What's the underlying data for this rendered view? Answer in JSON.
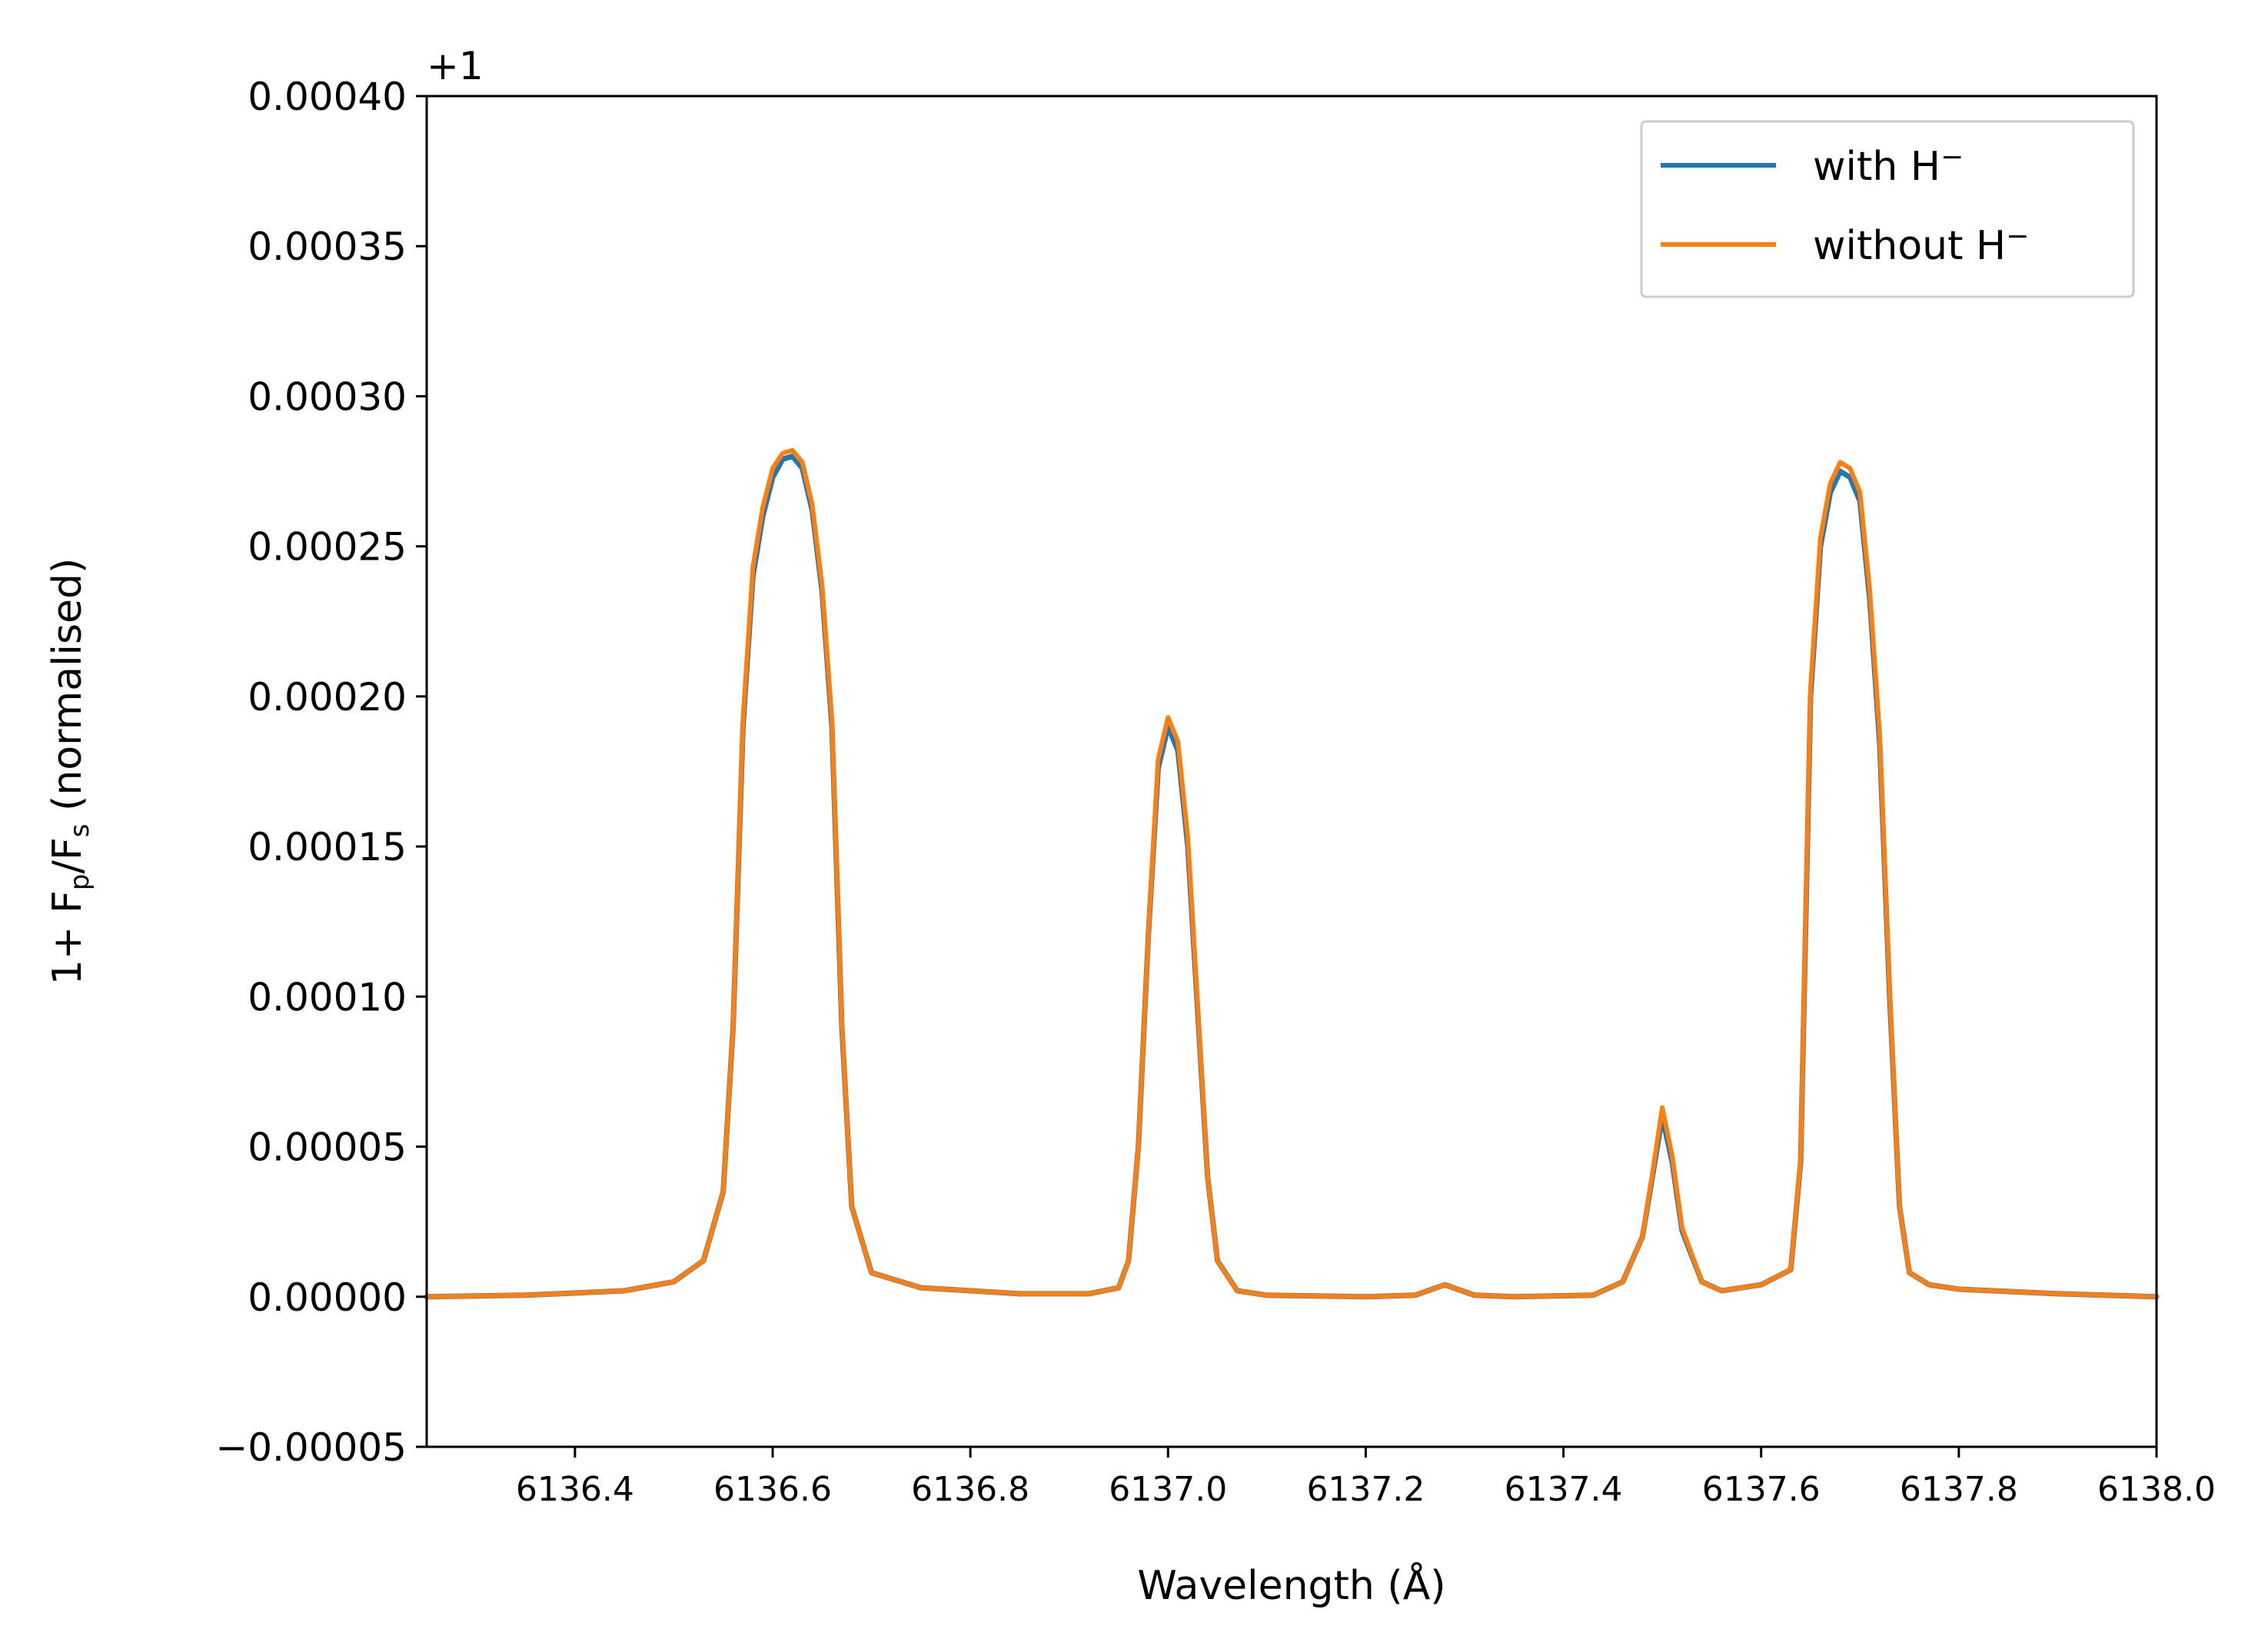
{
  "chart_data": {
    "type": "line",
    "xlabel": "Wavelength (Å)",
    "ylabel": "1+ F_p/F_s (normalised)",
    "ylabel_parts": {
      "prefix": "1+ F",
      "sub1": "p",
      "mid": "/F",
      "sub2": "s",
      "suffix": " (normalised)"
    },
    "y_offset_label": "+1",
    "xlim": [
      6136.25,
      6138.0
    ],
    "ylim": [
      -5e-05,
      0.0004
    ],
    "x_ticks": [
      6136.4,
      6136.6,
      6136.8,
      6137.0,
      6137.2,
      6137.4,
      6137.6,
      6137.8,
      6138.0
    ],
    "x_tick_labels": [
      "6136.4",
      "6136.6",
      "6136.8",
      "6137.0",
      "6137.2",
      "6137.4",
      "6137.6",
      "6137.8",
      "6138.0"
    ],
    "y_ticks": [
      -5e-05,
      0,
      5e-05,
      0.0001,
      0.00015,
      0.0002,
      0.00025,
      0.0003,
      0.00035,
      0.0004
    ],
    "y_tick_labels": [
      "−0.00005",
      "0.00000",
      "0.00005",
      "0.00010",
      "0.00015",
      "0.00020",
      "0.00025",
      "0.00030",
      "0.00035",
      "0.00040"
    ],
    "grid": false,
    "legend_position": "top-right",
    "series": [
      {
        "name": "with H⁻",
        "legend_base": "with H",
        "legend_sup": "−",
        "color": "#1f77b4",
        "x": [
          6136.25,
          6136.35,
          6136.45,
          6136.5,
          6136.53,
          6136.55,
          6136.56,
          6136.57,
          6136.58,
          6136.59,
          6136.6,
          6136.61,
          6136.62,
          6136.63,
          6136.64,
          6136.65,
          6136.66,
          6136.67,
          6136.68,
          6136.7,
          6136.75,
          6136.85,
          6136.92,
          6136.95,
          6136.96,
          6136.97,
          6136.98,
          6136.99,
          6137.0,
          6137.01,
          6137.02,
          6137.03,
          6137.04,
          6137.05,
          6137.07,
          6137.1,
          6137.2,
          6137.25,
          6137.28,
          6137.31,
          6137.35,
          6137.43,
          6137.46,
          6137.48,
          6137.49,
          6137.5,
          6137.51,
          6137.52,
          6137.54,
          6137.56,
          6137.6,
          6137.63,
          6137.64,
          6137.65,
          6137.66,
          6137.67,
          6137.68,
          6137.69,
          6137.7,
          6137.71,
          6137.72,
          6137.73,
          6137.74,
          6137.75,
          6137.77,
          6137.8,
          6137.9,
          6138.0
        ],
        "y": [
          0.0,
          5e-07,
          2e-06,
          5e-06,
          1.2e-05,
          3.5e-05,
          9e-05,
          0.00019,
          0.00024,
          0.00026,
          0.000273,
          0.000279,
          0.00028,
          0.000276,
          0.000262,
          0.000235,
          0.00019,
          9e-05,
          3e-05,
          8e-06,
          3e-06,
          1e-06,
          1e-06,
          3e-06,
          1.2e-05,
          5e-05,
          0.00012,
          0.000176,
          0.00019,
          0.000182,
          0.00015,
          9.5e-05,
          4e-05,
          1.2e-05,
          2e-06,
          5e-07,
          0.0,
          5e-07,
          4e-06,
          5e-07,
          0.0,
          5e-07,
          5e-06,
          2e-05,
          4e-05,
          6e-05,
          4.5e-05,
          2.2e-05,
          5e-06,
          2e-06,
          4e-06,
          9e-06,
          4.5e-05,
          0.0002,
          0.00025,
          0.000268,
          0.000275,
          0.000273,
          0.000265,
          0.000232,
          0.000184,
          0.0001,
          3e-05,
          8e-06,
          4e-06,
          2.5e-06,
          1e-06,
          0.0
        ]
      },
      {
        "name": "without H⁻",
        "legend_base": "without H",
        "legend_sup": "−",
        "color": "#ff7f0e",
        "x": [
          6136.25,
          6136.35,
          6136.45,
          6136.5,
          6136.53,
          6136.55,
          6136.56,
          6136.57,
          6136.58,
          6136.59,
          6136.6,
          6136.61,
          6136.62,
          6136.63,
          6136.64,
          6136.65,
          6136.66,
          6136.67,
          6136.68,
          6136.7,
          6136.75,
          6136.85,
          6136.92,
          6136.95,
          6136.96,
          6136.97,
          6136.98,
          6136.99,
          6137.0,
          6137.01,
          6137.02,
          6137.03,
          6137.04,
          6137.05,
          6137.07,
          6137.1,
          6137.2,
          6137.25,
          6137.28,
          6137.31,
          6137.35,
          6137.43,
          6137.46,
          6137.48,
          6137.49,
          6137.5,
          6137.51,
          6137.52,
          6137.54,
          6137.56,
          6137.6,
          6137.63,
          6137.64,
          6137.65,
          6137.66,
          6137.67,
          6137.68,
          6137.69,
          6137.7,
          6137.71,
          6137.72,
          6137.73,
          6137.74,
          6137.75,
          6137.77,
          6137.8,
          6137.9,
          6138.0
        ],
        "y": [
          0.0,
          5e-07,
          2e-06,
          5e-06,
          1.2e-05,
          3.5e-05,
          9e-05,
          0.000192,
          0.000243,
          0.000263,
          0.000276,
          0.000281,
          0.000282,
          0.000278,
          0.000264,
          0.000237,
          0.000192,
          9.1e-05,
          3e-05,
          8e-06,
          3e-06,
          1e-06,
          1e-06,
          3e-06,
          1.2e-05,
          5e-05,
          0.00012,
          0.000179,
          0.000193,
          0.000185,
          0.000153,
          9.7e-05,
          4e-05,
          1.2e-05,
          2e-06,
          5e-07,
          0.0,
          5e-07,
          4e-06,
          5e-07,
          0.0,
          5e-07,
          5e-06,
          2e-05,
          4.1e-05,
          6.3e-05,
          4.7e-05,
          2.3e-05,
          5e-06,
          2e-06,
          4e-06,
          9e-06,
          4.6e-05,
          0.000203,
          0.000253,
          0.000271,
          0.000278,
          0.000276,
          0.000268,
          0.000235,
          0.000187,
          0.000102,
          3e-05,
          8e-06,
          4e-06,
          2.5e-06,
          1e-06,
          0.0
        ]
      }
    ]
  }
}
